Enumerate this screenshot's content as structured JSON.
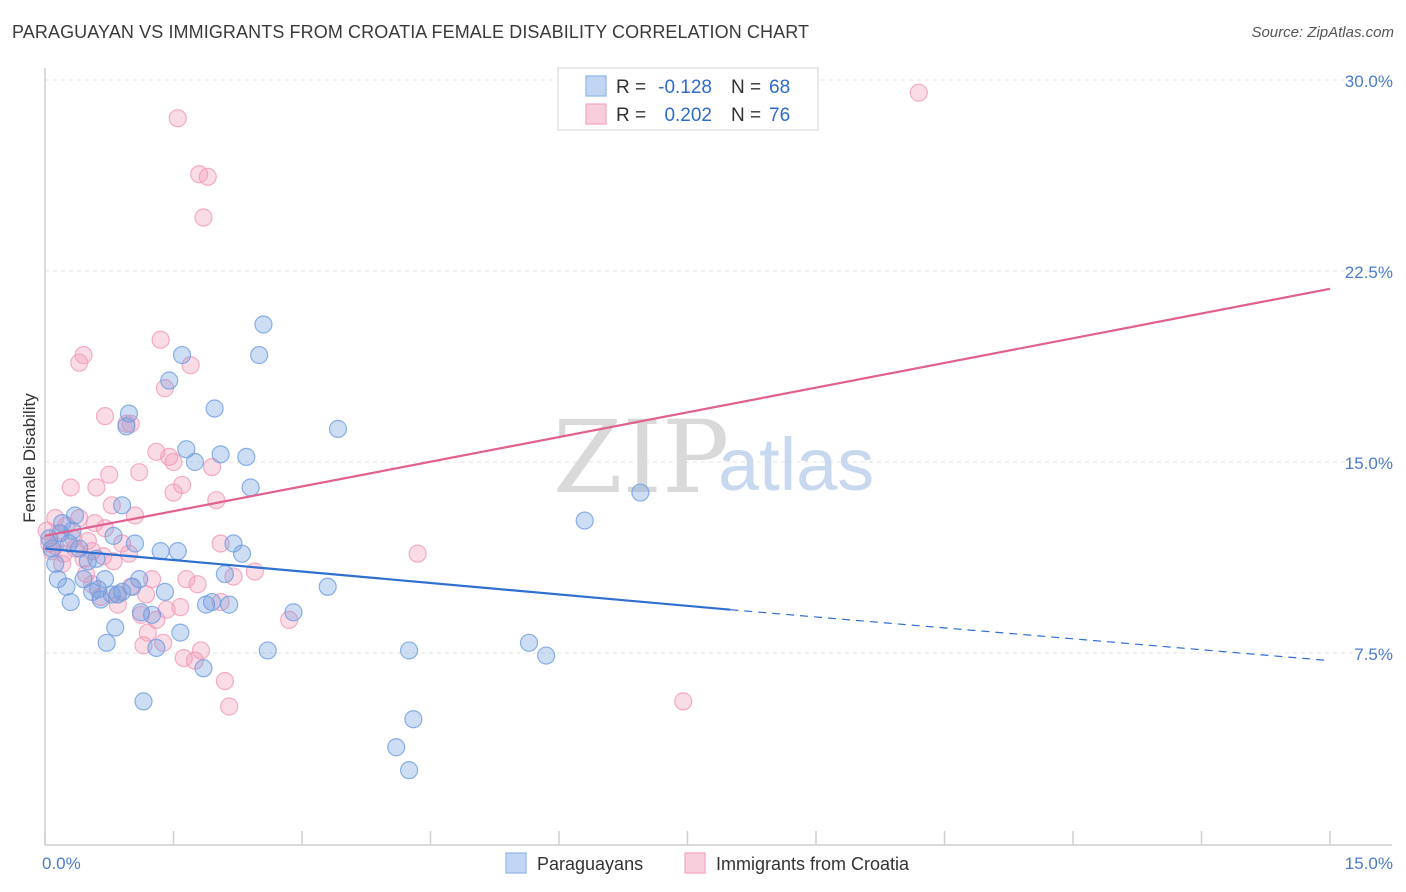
{
  "title": "PARAGUAYAN VS IMMIGRANTS FROM CROATIA FEMALE DISABILITY CORRELATION CHART",
  "source": "Source: ZipAtlas.com",
  "watermark": {
    "zip": "ZIP",
    "atlas": "atlas"
  },
  "chart_data": {
    "type": "scatter",
    "title": "PARAGUAYAN VS IMMIGRANTS FROM CROATIA FEMALE DISABILITY CORRELATION CHART",
    "xlabel": "",
    "ylabel": "Female Disability",
    "xlim": [
      0,
      15
    ],
    "ylim": [
      0,
      31.5
    ],
    "x_tick_labels": [
      {
        "value": 0,
        "label": "0.0%"
      },
      {
        "value": 15,
        "label": "15.0%"
      }
    ],
    "y_tick_labels": [
      {
        "value": 7.5,
        "label": "7.5%"
      },
      {
        "value": 15,
        "label": "15.0%"
      },
      {
        "value": 22.5,
        "label": "22.5%"
      },
      {
        "value": 30,
        "label": "30.0%"
      }
    ],
    "grid": true,
    "legend": {
      "position": "top-center",
      "entries": [
        {
          "r_label": "R =",
          "r": "-0.128",
          "n_label": "N =",
          "n": "68",
          "color": "#8fb4ea"
        },
        {
          "r_label": "R =",
          "r": "0.202",
          "n_label": "N =",
          "n": "76",
          "color": "#f4a6bf"
        }
      ]
    },
    "series": [
      {
        "name": "Paraguayans",
        "color": "#6f9fe0",
        "line_color": "#2f6fcf",
        "trend": {
          "x0": 0,
          "y0": 11.6,
          "x1": 8.0,
          "y1": 9.2,
          "dash_to_x": 15,
          "dash_to_y": 7.2
        },
        "points": [
          [
            0.05,
            12.0
          ],
          [
            0.08,
            11.6
          ],
          [
            0.12,
            11.0
          ],
          [
            0.15,
            10.4
          ],
          [
            0.2,
            12.6
          ],
          [
            0.25,
            10.1
          ],
          [
            0.3,
            9.5
          ],
          [
            0.35,
            12.9
          ],
          [
            0.4,
            11.6
          ],
          [
            0.45,
            10.4
          ],
          [
            0.5,
            11.1
          ],
          [
            0.55,
            9.9
          ],
          [
            0.6,
            11.2
          ],
          [
            0.65,
            9.6
          ],
          [
            0.7,
            10.4
          ],
          [
            0.72,
            7.9
          ],
          [
            0.8,
            12.1
          ],
          [
            0.82,
            8.5
          ],
          [
            0.85,
            9.8
          ],
          [
            0.9,
            13.3
          ],
          [
            0.95,
            16.4
          ],
          [
            0.98,
            16.9
          ],
          [
            1.05,
            11.8
          ],
          [
            1.1,
            10.4
          ],
          [
            1.12,
            9.1
          ],
          [
            1.15,
            5.6
          ],
          [
            1.3,
            7.7
          ],
          [
            1.4,
            9.9
          ],
          [
            1.45,
            18.2
          ],
          [
            1.55,
            11.5
          ],
          [
            1.58,
            8.3
          ],
          [
            1.6,
            19.2
          ],
          [
            1.65,
            15.5
          ],
          [
            1.75,
            15.0
          ],
          [
            1.85,
            6.9
          ],
          [
            1.88,
            9.4
          ],
          [
            1.95,
            9.5
          ],
          [
            1.98,
            17.1
          ],
          [
            2.05,
            15.3
          ],
          [
            2.1,
            10.6
          ],
          [
            2.2,
            11.8
          ],
          [
            2.3,
            11.4
          ],
          [
            2.35,
            15.2
          ],
          [
            2.4,
            14.0
          ],
          [
            2.5,
            19.2
          ],
          [
            2.55,
            20.4
          ],
          [
            2.6,
            7.6
          ],
          [
            2.9,
            9.1
          ],
          [
            3.3,
            10.1
          ],
          [
            3.42,
            16.3
          ],
          [
            4.1,
            3.8
          ],
          [
            4.25,
            2.9
          ],
          [
            4.3,
            4.9
          ],
          [
            4.25,
            7.6
          ],
          [
            5.65,
            7.9
          ],
          [
            5.85,
            7.4
          ],
          [
            6.3,
            12.7
          ],
          [
            6.95,
            13.8
          ],
          [
            0.32,
            12.3
          ],
          [
            0.62,
            10.0
          ],
          [
            0.9,
            9.9
          ],
          [
            1.02,
            10.1
          ],
          [
            1.25,
            9.0
          ],
          [
            0.18,
            12.2
          ],
          [
            0.28,
            11.8
          ],
          [
            0.78,
            9.8
          ],
          [
            1.35,
            11.5
          ],
          [
            2.15,
            9.4
          ]
        ]
      },
      {
        "name": "Immigrants from Croatia",
        "color": "#f29ab8",
        "line_color": "#e0608f",
        "trend": {
          "x0": 0,
          "y0": 12.1,
          "x1": 15,
          "y1": 21.8
        },
        "points": [
          [
            0.02,
            12.3
          ],
          [
            0.05,
            11.8
          ],
          [
            0.08,
            11.5
          ],
          [
            0.12,
            12.8
          ],
          [
            0.15,
            12.2
          ],
          [
            0.2,
            11.0
          ],
          [
            0.25,
            12.5
          ],
          [
            0.3,
            14.0
          ],
          [
            0.35,
            11.6
          ],
          [
            0.4,
            12.8
          ],
          [
            0.45,
            11.2
          ],
          [
            0.5,
            11.9
          ],
          [
            0.55,
            10.2
          ],
          [
            0.6,
            14.0
          ],
          [
            0.65,
            9.7
          ],
          [
            0.7,
            12.4
          ],
          [
            0.75,
            14.5
          ],
          [
            0.8,
            11.1
          ],
          [
            0.85,
            9.4
          ],
          [
            0.9,
            11.8
          ],
          [
            0.95,
            16.5
          ],
          [
            1.0,
            10.1
          ],
          [
            1.05,
            12.9
          ],
          [
            1.1,
            14.6
          ],
          [
            1.15,
            7.8
          ],
          [
            1.2,
            8.3
          ],
          [
            1.25,
            10.4
          ],
          [
            1.3,
            8.8
          ],
          [
            1.35,
            19.8
          ],
          [
            1.4,
            17.9
          ],
          [
            1.45,
            15.2
          ],
          [
            1.5,
            13.8
          ],
          [
            1.55,
            28.5
          ],
          [
            1.6,
            14.1
          ],
          [
            1.65,
            10.4
          ],
          [
            1.7,
            18.8
          ],
          [
            1.75,
            7.2
          ],
          [
            1.8,
            26.3
          ],
          [
            1.85,
            24.6
          ],
          [
            1.9,
            26.2
          ],
          [
            1.95,
            14.8
          ],
          [
            2.0,
            13.5
          ],
          [
            2.05,
            11.8
          ],
          [
            2.1,
            6.4
          ],
          [
            2.15,
            5.4
          ],
          [
            2.2,
            10.5
          ],
          [
            0.4,
            18.9
          ],
          [
            0.45,
            19.2
          ],
          [
            0.7,
            16.8
          ],
          [
            1.0,
            16.5
          ],
          [
            1.3,
            15.4
          ],
          [
            1.5,
            15.0
          ],
          [
            0.55,
            11.5
          ],
          [
            0.85,
            9.8
          ],
          [
            1.12,
            9.0
          ],
          [
            1.42,
            9.2
          ],
          [
            1.62,
            7.3
          ],
          [
            1.82,
            7.6
          ],
          [
            4.35,
            11.4
          ],
          [
            7.45,
            5.6
          ],
          [
            10.2,
            29.5
          ],
          [
            2.05,
            9.5
          ],
          [
            0.22,
            11.4
          ],
          [
            0.33,
            12.0
          ],
          [
            0.58,
            12.6
          ],
          [
            0.68,
            11.3
          ],
          [
            0.78,
            13.3
          ],
          [
            0.98,
            11.4
          ],
          [
            1.18,
            9.8
          ],
          [
            1.38,
            7.9
          ],
          [
            1.58,
            9.3
          ],
          [
            1.78,
            10.2
          ],
          [
            2.45,
            10.7
          ],
          [
            2.85,
            8.8
          ],
          [
            0.12,
            11.7
          ],
          [
            0.48,
            10.6
          ]
        ]
      }
    ]
  }
}
